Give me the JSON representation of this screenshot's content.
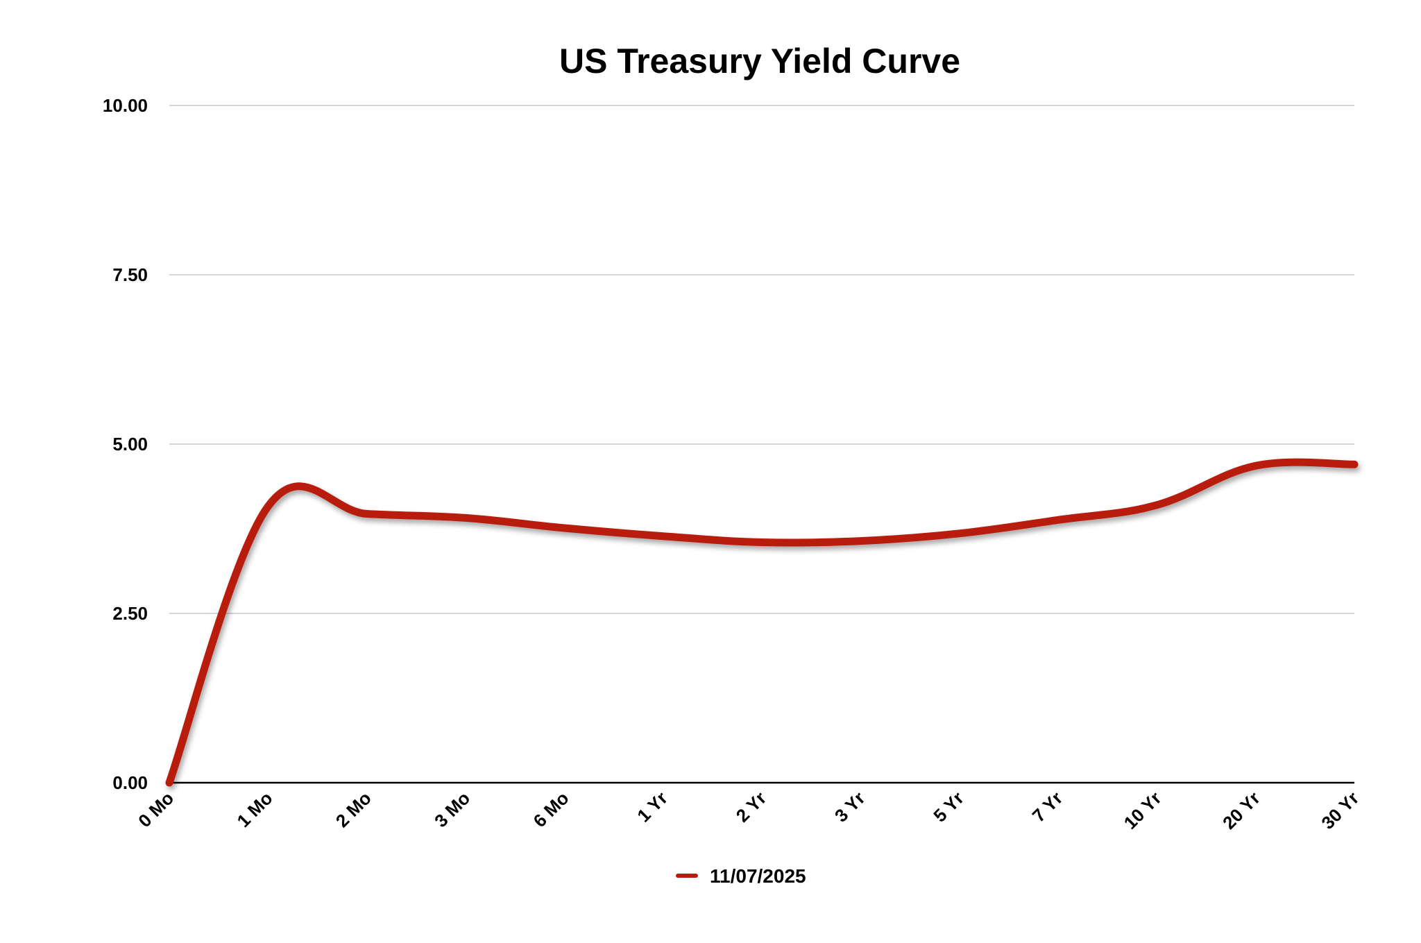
{
  "chart_data": {
    "type": "line",
    "title": "US Treasury Yield Curve",
    "xlabel": "",
    "ylabel": "",
    "categories": [
      "0 Mo",
      "1 Mo",
      "2 Mo",
      "3 Mo",
      "6 Mo",
      "1 Yr",
      "2 Yr",
      "3 Yr",
      "5 Yr",
      "7 Yr",
      "10 Yr",
      "20 Yr",
      "30 Yr"
    ],
    "series": [
      {
        "name": "11/07/2025",
        "color": "#b81c0e",
        "values": [
          0.0,
          4.08,
          3.97,
          3.91,
          3.76,
          3.64,
          3.55,
          3.57,
          3.68,
          3.88,
          4.1,
          4.68,
          4.7
        ]
      }
    ],
    "ylim": [
      0,
      10
    ],
    "yticks": [
      "0.00",
      "2.50",
      "5.00",
      "7.50",
      "10.00"
    ],
    "ytick_values": [
      0,
      2.5,
      5,
      7.5,
      10
    ],
    "grid": true,
    "legend_position": "bottom-center",
    "smooth": true
  }
}
